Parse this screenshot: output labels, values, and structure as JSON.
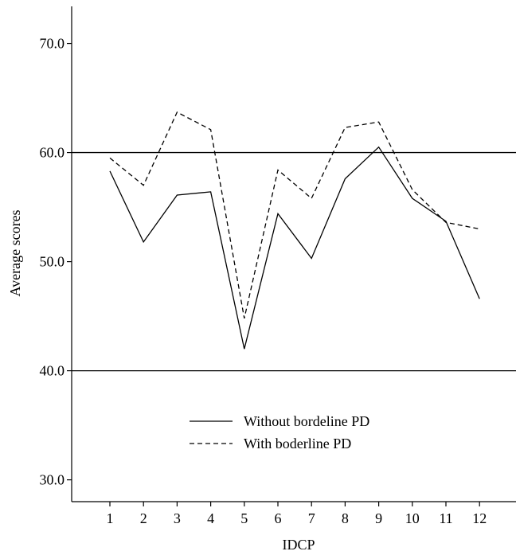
{
  "chart_data": {
    "type": "line",
    "xlabel": "IDCP",
    "ylabel": "Average scores",
    "categories": [
      "1",
      "2",
      "3",
      "4",
      "5",
      "6",
      "7",
      "8",
      "9",
      "10",
      "11",
      "12"
    ],
    "ylim": [
      28.0,
      73.4
    ],
    "y_ticks": [
      "30.0",
      "40.0",
      "50.0",
      "60.0",
      "70.0"
    ],
    "reference_lines": [
      60.0,
      40.0
    ],
    "legend_position": "lower-center",
    "series": [
      {
        "name": "Without bordeline PD",
        "style": "solid",
        "color": "#000000",
        "values": [
          58.3,
          51.8,
          56.1,
          56.4,
          42.0,
          54.4,
          50.3,
          57.6,
          60.5,
          55.8,
          53.7,
          46.6
        ]
      },
      {
        "name": "With boderline PD",
        "style": "dashed",
        "color": "#000000",
        "values": [
          59.5,
          57.0,
          63.7,
          62.1,
          44.8,
          58.4,
          55.8,
          62.3,
          62.8,
          56.6,
          53.6,
          53.0
        ]
      }
    ]
  }
}
